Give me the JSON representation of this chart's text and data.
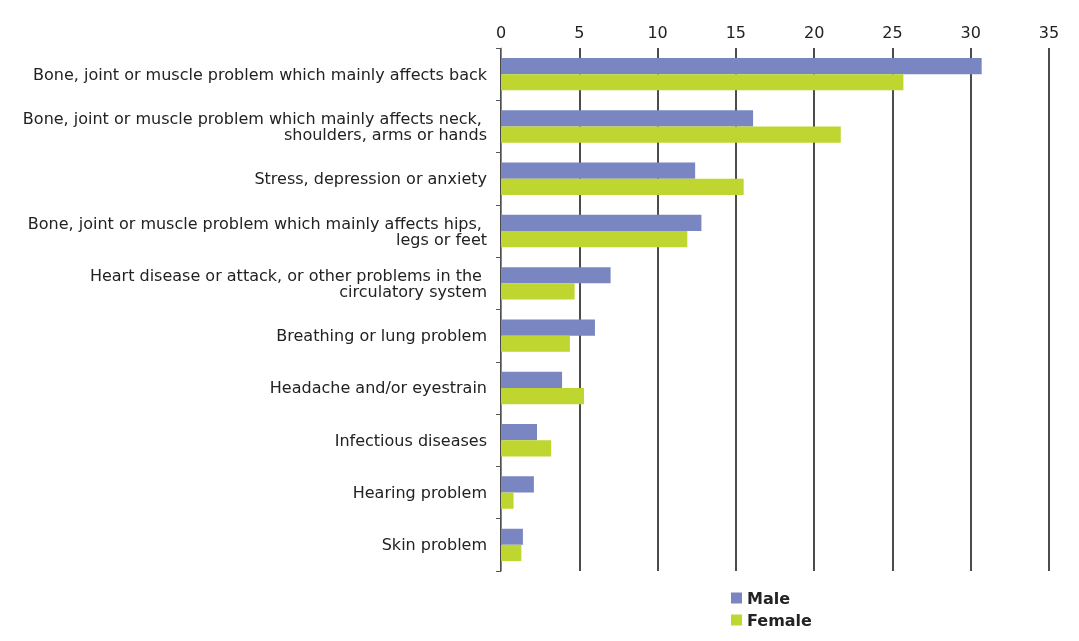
{
  "chart_data": {
    "type": "bar",
    "orientation": "horizontal",
    "categories": [
      "Bone, joint or muscle problem which mainly affects back",
      "Bone, joint or muscle problem which mainly affects neck, shoulders, arms or hands",
      "Stress, depression or anxiety",
      "Bone, joint or muscle problem which mainly affects hips, legs or feet",
      "Heart disease or attack, or other problems in the circulatory system",
      "Breathing or lung problem",
      "Headache and/or eyestrain",
      "Infectious diseases",
      "Hearing problem",
      "Skin problem"
    ],
    "series": [
      {
        "name": "Male",
        "color": "#7986c2",
        "values": [
          30.7,
          16.1,
          12.4,
          12.8,
          7.0,
          6.0,
          3.9,
          2.3,
          2.1,
          1.4
        ]
      },
      {
        "name": "Female",
        "color": "#bed62f",
        "values": [
          25.7,
          21.7,
          15.5,
          11.9,
          4.7,
          4.4,
          5.3,
          3.2,
          0.8,
          1.3
        ]
      }
    ],
    "xlim": [
      0,
      35
    ],
    "xticks": [
      0,
      5,
      10,
      15,
      20,
      25,
      30,
      35
    ],
    "grid": "x",
    "legend": "bottom"
  }
}
